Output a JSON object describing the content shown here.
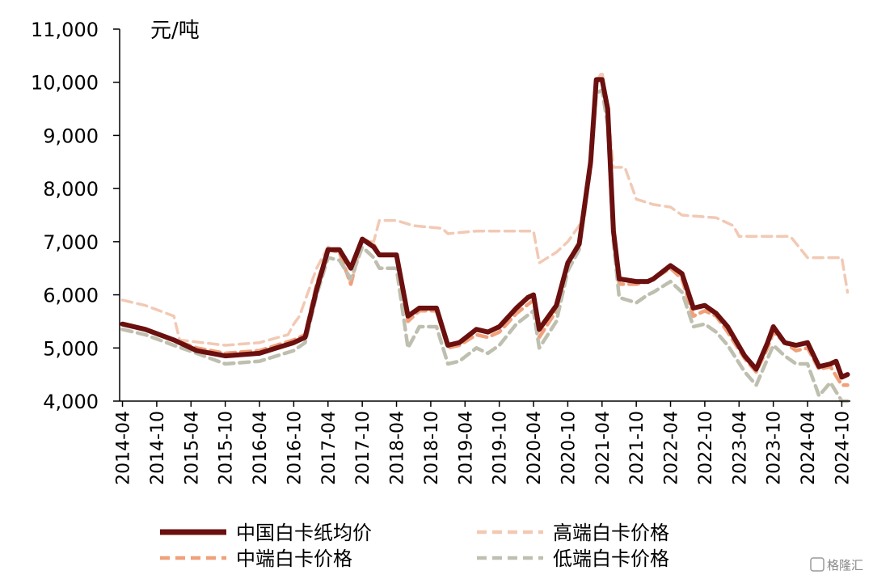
{
  "chart_data": {
    "type": "line",
    "unit_label": "元/吨",
    "ylim": [
      4000,
      11000
    ],
    "y_ticks": [
      4000,
      5000,
      6000,
      7000,
      8000,
      9000,
      10000,
      11000
    ],
    "y_tick_labels": [
      "4,000",
      "5,000",
      "6,000",
      "7,000",
      "8,000",
      "9,000",
      "10,000",
      "11,000"
    ],
    "x_range": [
      "2014-04",
      "2024-11"
    ],
    "x_tick_labels": [
      "2014-04",
      "2014-10",
      "2015-04",
      "2015-10",
      "2016-04",
      "2016-10",
      "2017-04",
      "2017-10",
      "2018-04",
      "2018-10",
      "2019-04",
      "2019-10",
      "2020-04",
      "2020-10",
      "2021-04",
      "2021-10",
      "2022-04",
      "2022-10",
      "2023-04",
      "2023-10",
      "2024-04",
      "2024-10"
    ],
    "grid": false,
    "legend_position": "bottom",
    "series": [
      {
        "name": "高端白卡价格",
        "color": "#f2c9b4",
        "dash": "dashed",
        "points": [
          [
            "2014-04",
            5900
          ],
          [
            "2014-08",
            5800
          ],
          [
            "2015-01",
            5600
          ],
          [
            "2015-02",
            5150
          ],
          [
            "2015-06",
            5100
          ],
          [
            "2015-10",
            5050
          ],
          [
            "2016-04",
            5100
          ],
          [
            "2016-09",
            5250
          ],
          [
            "2016-10",
            5450
          ],
          [
            "2016-11",
            5600
          ],
          [
            "2017-02",
            6500
          ],
          [
            "2017-04",
            6900
          ],
          [
            "2017-06",
            6800
          ],
          [
            "2017-08",
            6200
          ],
          [
            "2017-10",
            7000
          ],
          [
            "2017-12",
            7000
          ],
          [
            "2018-01",
            7400
          ],
          [
            "2018-04",
            7400
          ],
          [
            "2018-07",
            7300
          ],
          [
            "2018-12",
            7250
          ],
          [
            "2019-01",
            7150
          ],
          [
            "2019-06",
            7200
          ],
          [
            "2020-04",
            7200
          ],
          [
            "2020-05",
            6600
          ],
          [
            "2020-08",
            6800
          ],
          [
            "2020-10",
            7000
          ],
          [
            "2020-12",
            7300
          ],
          [
            "2021-01",
            7500
          ],
          [
            "2021-02",
            8500
          ],
          [
            "2021-03",
            10000
          ],
          [
            "2021-04",
            10200
          ],
          [
            "2021-05",
            9500
          ],
          [
            "2021-06",
            8400
          ],
          [
            "2021-08",
            8400
          ],
          [
            "2021-10",
            7800
          ],
          [
            "2022-01",
            7700
          ],
          [
            "2022-04",
            7650
          ],
          [
            "2022-06",
            7500
          ],
          [
            "2022-12",
            7450
          ],
          [
            "2023-03",
            7300
          ],
          [
            "2023-04",
            7100
          ],
          [
            "2023-09",
            7100
          ],
          [
            "2024-01",
            7100
          ],
          [
            "2024-04",
            6700
          ],
          [
            "2024-09",
            6700
          ],
          [
            "2024-10",
            6700
          ],
          [
            "2024-11",
            6050
          ]
        ]
      },
      {
        "name": "中端白卡价格",
        "color": "#f0a07a",
        "dash": "dashed",
        "points": [
          [
            "2014-04",
            5450
          ],
          [
            "2014-08",
            5350
          ],
          [
            "2015-01",
            5150
          ],
          [
            "2015-05",
            5000
          ],
          [
            "2015-10",
            4900
          ],
          [
            "2016-04",
            4950
          ],
          [
            "2016-07",
            5050
          ],
          [
            "2016-10",
            5150
          ],
          [
            "2016-12",
            5250
          ],
          [
            "2017-02",
            6200
          ],
          [
            "2017-04",
            6850
          ],
          [
            "2017-06",
            6800
          ],
          [
            "2017-08",
            6200
          ],
          [
            "2017-10",
            7050
          ],
          [
            "2017-12",
            6950
          ],
          [
            "2018-01",
            6750
          ],
          [
            "2018-04",
            6750
          ],
          [
            "2018-06",
            5500
          ],
          [
            "2018-08",
            5700
          ],
          [
            "2018-11",
            5700
          ],
          [
            "2019-01",
            5000
          ],
          [
            "2019-03",
            5050
          ],
          [
            "2019-06",
            5250
          ],
          [
            "2019-08",
            5200
          ],
          [
            "2019-10",
            5300
          ],
          [
            "2020-01",
            5650
          ],
          [
            "2020-04",
            5900
          ],
          [
            "2020-05",
            5200
          ],
          [
            "2020-08",
            5700
          ],
          [
            "2020-10",
            6600
          ],
          [
            "2020-12",
            7000
          ],
          [
            "2021-02",
            8600
          ],
          [
            "2021-03",
            10000
          ],
          [
            "2021-04",
            10100
          ],
          [
            "2021-05",
            9500
          ],
          [
            "2021-06",
            7200
          ],
          [
            "2021-07",
            6200
          ],
          [
            "2021-10",
            6200
          ],
          [
            "2021-12",
            6250
          ],
          [
            "2022-01",
            6300
          ],
          [
            "2022-04",
            6500
          ],
          [
            "2022-06",
            6300
          ],
          [
            "2022-08",
            5600
          ],
          [
            "2022-10",
            5700
          ],
          [
            "2022-12",
            5600
          ],
          [
            "2023-02",
            5300
          ],
          [
            "2023-05",
            4800
          ],
          [
            "2023-07",
            4550
          ],
          [
            "2023-09",
            5000
          ],
          [
            "2023-10",
            5300
          ],
          [
            "2023-12",
            5100
          ],
          [
            "2024-02",
            4950
          ],
          [
            "2024-04",
            5000
          ],
          [
            "2024-06",
            4600
          ],
          [
            "2024-08",
            4650
          ],
          [
            "2024-10",
            4300
          ],
          [
            "2024-11",
            4300
          ]
        ]
      },
      {
        "name": "低端白卡价格",
        "color": "#bfbfb0",
        "dash": "dashed",
        "points": [
          [
            "2014-04",
            5350
          ],
          [
            "2014-08",
            5250
          ],
          [
            "2015-01",
            5050
          ],
          [
            "2015-05",
            4900
          ],
          [
            "2015-10",
            4700
          ],
          [
            "2016-04",
            4750
          ],
          [
            "2016-07",
            4850
          ],
          [
            "2016-10",
            4950
          ],
          [
            "2016-12",
            5100
          ],
          [
            "2017-02",
            6000
          ],
          [
            "2017-04",
            6700
          ],
          [
            "2017-06",
            6650
          ],
          [
            "2017-08",
            6300
          ],
          [
            "2017-10",
            6900
          ],
          [
            "2017-12",
            6700
          ],
          [
            "2018-01",
            6500
          ],
          [
            "2018-04",
            6500
          ],
          [
            "2018-06",
            5000
          ],
          [
            "2018-08",
            5400
          ],
          [
            "2018-11",
            5400
          ],
          [
            "2019-01",
            4700
          ],
          [
            "2019-03",
            4750
          ],
          [
            "2019-06",
            5000
          ],
          [
            "2019-08",
            4900
          ],
          [
            "2019-10",
            5050
          ],
          [
            "2020-01",
            5450
          ],
          [
            "2020-04",
            5700
          ],
          [
            "2020-05",
            5000
          ],
          [
            "2020-08",
            5500
          ],
          [
            "2020-10",
            6450
          ],
          [
            "2020-12",
            6850
          ],
          [
            "2021-02",
            8400
          ],
          [
            "2021-03",
            9800
          ],
          [
            "2021-04",
            9850
          ],
          [
            "2021-05",
            9200
          ],
          [
            "2021-06",
            7000
          ],
          [
            "2021-07",
            5950
          ],
          [
            "2021-10",
            5850
          ],
          [
            "2021-12",
            6000
          ],
          [
            "2022-01",
            6050
          ],
          [
            "2022-04",
            6250
          ],
          [
            "2022-06",
            6050
          ],
          [
            "2022-08",
            5400
          ],
          [
            "2022-10",
            5450
          ],
          [
            "2022-12",
            5300
          ],
          [
            "2023-02",
            5050
          ],
          [
            "2023-05",
            4550
          ],
          [
            "2023-07",
            4300
          ],
          [
            "2023-09",
            4800
          ],
          [
            "2023-10",
            5050
          ],
          [
            "2023-12",
            4850
          ],
          [
            "2024-02",
            4700
          ],
          [
            "2024-04",
            4700
          ],
          [
            "2024-06",
            4100
          ],
          [
            "2024-08",
            4350
          ],
          [
            "2024-10",
            4000
          ],
          [
            "2024-11",
            4000
          ]
        ]
      },
      {
        "name": "中国白卡纸均价",
        "color": "#6b0f0f",
        "dash": "solid",
        "points": [
          [
            "2014-04",
            5450
          ],
          [
            "2014-08",
            5350
          ],
          [
            "2015-01",
            5150
          ],
          [
            "2015-05",
            4950
          ],
          [
            "2015-10",
            4850
          ],
          [
            "2016-04",
            4900
          ],
          [
            "2016-07",
            5000
          ],
          [
            "2016-10",
            5100
          ],
          [
            "2016-12",
            5200
          ],
          [
            "2017-02",
            6100
          ],
          [
            "2017-04",
            6850
          ],
          [
            "2017-06",
            6850
          ],
          [
            "2017-08",
            6500
          ],
          [
            "2017-10",
            7050
          ],
          [
            "2017-12",
            6900
          ],
          [
            "2018-01",
            6750
          ],
          [
            "2018-04",
            6750
          ],
          [
            "2018-06",
            5600
          ],
          [
            "2018-08",
            5750
          ],
          [
            "2018-11",
            5750
          ],
          [
            "2019-01",
            5050
          ],
          [
            "2019-03",
            5100
          ],
          [
            "2019-06",
            5350
          ],
          [
            "2019-08",
            5300
          ],
          [
            "2019-10",
            5400
          ],
          [
            "2020-01",
            5750
          ],
          [
            "2020-03",
            5950
          ],
          [
            "2020-04",
            6000
          ],
          [
            "2020-05",
            5350
          ],
          [
            "2020-08",
            5800
          ],
          [
            "2020-10",
            6600
          ],
          [
            "2020-12",
            6950
          ],
          [
            "2021-02",
            8500
          ],
          [
            "2021-03",
            10050
          ],
          [
            "2021-04",
            10050
          ],
          [
            "2021-05",
            9500
          ],
          [
            "2021-06",
            7200
          ],
          [
            "2021-07",
            6300
          ],
          [
            "2021-10",
            6250
          ],
          [
            "2021-12",
            6250
          ],
          [
            "2022-01",
            6300
          ],
          [
            "2022-04",
            6550
          ],
          [
            "2022-06",
            6400
          ],
          [
            "2022-08",
            5750
          ],
          [
            "2022-10",
            5800
          ],
          [
            "2022-12",
            5650
          ],
          [
            "2023-02",
            5400
          ],
          [
            "2023-05",
            4850
          ],
          [
            "2023-07",
            4600
          ],
          [
            "2023-09",
            5100
          ],
          [
            "2023-10",
            5400
          ],
          [
            "2023-12",
            5100
          ],
          [
            "2024-02",
            5050
          ],
          [
            "2024-04",
            5100
          ],
          [
            "2024-06",
            4650
          ],
          [
            "2024-08",
            4700
          ],
          [
            "2024-09",
            4750
          ],
          [
            "2024-10",
            4450
          ],
          [
            "2024-11",
            4500
          ]
        ]
      }
    ],
    "legend": [
      {
        "label": "中国白卡纸均价",
        "series": "中国白卡纸均价"
      },
      {
        "label": "高端白卡价格",
        "series": "高端白卡价格"
      },
      {
        "label": "中端白卡价格",
        "series": "中端白卡价格"
      },
      {
        "label": "低端白卡价格",
        "series": "低端白卡价格"
      }
    ]
  },
  "watermark": "格隆汇"
}
